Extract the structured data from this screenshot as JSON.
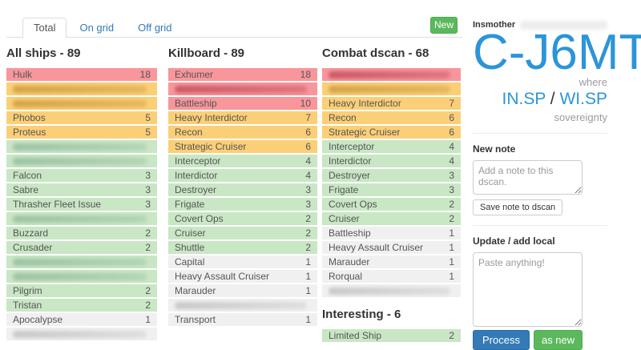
{
  "tabs": [
    {
      "label": "Total",
      "active": true
    },
    {
      "label": "On grid",
      "active": false
    },
    {
      "label": "Off grid",
      "active": false
    }
  ],
  "new_button_label": "New",
  "columns": [
    {
      "sections": [
        {
          "title": "All ships",
          "count": 89,
          "separator": "-",
          "rows": [
            {
              "name": "Hulk",
              "value": 18,
              "color": "red"
            },
            {
              "redacted": true,
              "color": "yellow"
            },
            {
              "redacted": true,
              "color": "yellow"
            },
            {
              "name": "Phobos",
              "value": 5,
              "color": "yellow"
            },
            {
              "name": "Proteus",
              "value": 5,
              "color": "yellow"
            },
            {
              "redacted": true,
              "color": "green"
            },
            {
              "redacted": true,
              "color": "green"
            },
            {
              "name": "Falcon",
              "value": 3,
              "color": "green"
            },
            {
              "name": "Sabre",
              "value": 3,
              "color": "green"
            },
            {
              "name": "Thrasher Fleet Issue",
              "value": 3,
              "color": "green"
            },
            {
              "redacted": true,
              "color": "green"
            },
            {
              "name": "Buzzard",
              "value": 2,
              "color": "green"
            },
            {
              "name": "Crusader",
              "value": 2,
              "color": "green"
            },
            {
              "redacted": true,
              "color": "green"
            },
            {
              "redacted": true,
              "color": "green"
            },
            {
              "name": "Pilgrim",
              "value": 2,
              "color": "green"
            },
            {
              "name": "Tristan",
              "value": 2,
              "color": "green"
            },
            {
              "name": "Apocalypse",
              "value": 1,
              "color": "gray"
            },
            {
              "redacted": true,
              "color": "gray"
            }
          ]
        }
      ]
    },
    {
      "sections": [
        {
          "title": "Killboard",
          "count": 89,
          "separator": "-",
          "rows": [
            {
              "name": "Exhumer",
              "value": 18,
              "color": "red"
            },
            {
              "redacted": true,
              "color": "red"
            },
            {
              "name": "Battleship",
              "value": 10,
              "color": "red"
            },
            {
              "name": "Heavy Interdictor",
              "value": 7,
              "color": "yellow"
            },
            {
              "name": "Recon",
              "value": 6,
              "color": "yellow"
            },
            {
              "name": "Strategic Cruiser",
              "value": 6,
              "color": "yellow"
            },
            {
              "name": "Interceptor",
              "value": 4,
              "color": "green"
            },
            {
              "name": "Interdictor",
              "value": 4,
              "color": "green"
            },
            {
              "name": "Destroyer",
              "value": 3,
              "color": "green"
            },
            {
              "name": "Frigate",
              "value": 3,
              "color": "green"
            },
            {
              "name": "Covert Ops",
              "value": 2,
              "color": "green"
            },
            {
              "name": "Cruiser",
              "value": 2,
              "color": "green"
            },
            {
              "name": "Shuttle",
              "value": 2,
              "color": "green"
            },
            {
              "name": "Capital",
              "value": 1,
              "color": "gray"
            },
            {
              "name": "Heavy Assault Cruiser",
              "value": 1,
              "color": "gray"
            },
            {
              "name": "Marauder",
              "value": 1,
              "color": "gray"
            },
            {
              "redacted": true,
              "value": 1,
              "color": "gray"
            },
            {
              "name": "Transport",
              "value": 1,
              "color": "gray"
            }
          ]
        }
      ]
    },
    {
      "sections": [
        {
          "title": "Combat dscan",
          "count": 68,
          "separator": "-",
          "rows": [
            {
              "redacted": true,
              "color": "red"
            },
            {
              "redacted": true,
              "color": "yellow"
            },
            {
              "name": "Heavy Interdictor",
              "value": 7,
              "color": "yellow"
            },
            {
              "name": "Recon",
              "value": 6,
              "color": "yellow"
            },
            {
              "name": "Strategic Cruiser",
              "value": 6,
              "color": "yellow"
            },
            {
              "name": "Interceptor",
              "value": 4,
              "color": "green"
            },
            {
              "name": "Interdictor",
              "value": 4,
              "color": "green"
            },
            {
              "name": "Destroyer",
              "value": 3,
              "color": "green"
            },
            {
              "name": "Frigate",
              "value": 3,
              "color": "green"
            },
            {
              "name": "Covert Ops",
              "value": 2,
              "color": "green"
            },
            {
              "name": "Cruiser",
              "value": 2,
              "color": "green"
            },
            {
              "name": "Battleship",
              "value": 1,
              "color": "gray"
            },
            {
              "name": "Heavy Assault Cruiser",
              "value": 1,
              "color": "gray"
            },
            {
              "name": "Marauder",
              "value": 1,
              "color": "gray"
            },
            {
              "name": "Rorqual",
              "value": 1,
              "color": "gray"
            },
            {
              "redacted": true,
              "color": "gray"
            }
          ]
        },
        {
          "title": "Interesting",
          "count": 6,
          "separator": "-",
          "rows": [
            {
              "name": "Limited Ship",
              "value": 2,
              "color": "green"
            }
          ]
        }
      ]
    }
  ],
  "sidebar": {
    "region": "Insmother",
    "system": "C-J6MT",
    "where_label": "where",
    "alliance_a": "IN.SP",
    "alliance_separator": "/",
    "alliance_b": "WI.SP",
    "sovereignty_label": "sovereignty",
    "new_note": {
      "label": "New note",
      "placeholder": "Add a note to this dscan.",
      "save_label": "Save note to dscan"
    },
    "update_local": {
      "label": "Update / add local",
      "placeholder": "Paste anything!",
      "process_label": "Process",
      "as_new_label": "as new"
    }
  },
  "colors": {
    "row_red": "#f8969b",
    "row_yellow": "#fbcf77",
    "row_green": "#c9e6c5",
    "row_gray": "#f0f0f0",
    "accent_blue": "#2b95d8",
    "btn_primary": "#337ab7",
    "btn_success": "#5cb85c",
    "tab_link": "#337ab7"
  }
}
